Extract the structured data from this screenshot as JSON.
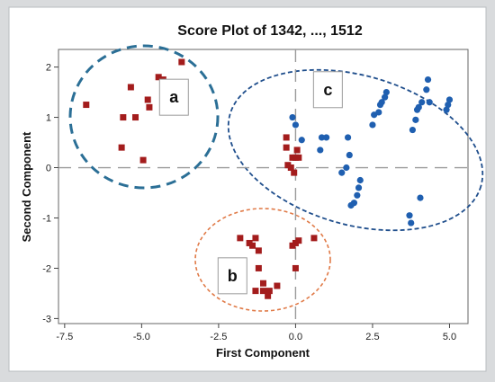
{
  "chart_data": {
    "type": "scatter",
    "title": "Score Plot of 1342, ..., 1512",
    "xlabel": "First Component",
    "ylabel": "Second Component",
    "xlim": [
      -7.7,
      5.6
    ],
    "ylim": [
      -3.1,
      2.35
    ],
    "xticks": [
      -7.5,
      -5.0,
      -2.5,
      0.0,
      2.5,
      5.0
    ],
    "xtick_labels": [
      "-7.5",
      "-5.0",
      "-2.5",
      "0.0",
      "2.5",
      "5.0"
    ],
    "yticks": [
      -3,
      -2,
      -1,
      0,
      1,
      2
    ],
    "ytick_labels": [
      "-3",
      "-2",
      "-1",
      "0",
      "1",
      "2"
    ],
    "reference_lines": {
      "x": 0,
      "y": 0
    },
    "grid": false,
    "series": [
      {
        "marker": "square",
        "color": "#a31c1c",
        "points": [
          [
            -6.8,
            1.25
          ],
          [
            -5.6,
            1.0
          ],
          [
            -5.35,
            1.6
          ],
          [
            -5.65,
            0.4
          ],
          [
            -5.2,
            1.0
          ],
          [
            -4.95,
            0.15
          ],
          [
            -4.8,
            1.35
          ],
          [
            -4.75,
            1.2
          ],
          [
            -4.45,
            1.8
          ],
          [
            -4.3,
            1.75
          ],
          [
            -4.2,
            1.65
          ],
          [
            -3.7,
            2.1
          ],
          [
            -0.3,
            0.6
          ],
          [
            -0.3,
            0.4
          ],
          [
            -0.25,
            0.05
          ],
          [
            -0.1,
            0.2
          ],
          [
            0.0,
            0.2
          ],
          [
            0.1,
            0.2
          ],
          [
            -0.15,
            0.0
          ],
          [
            -0.05,
            -0.1
          ],
          [
            0.05,
            0.35
          ],
          [
            -1.8,
            -1.4
          ],
          [
            -1.5,
            -1.5
          ],
          [
            -1.3,
            -1.4
          ],
          [
            -1.4,
            -1.55
          ],
          [
            -1.2,
            -1.65
          ],
          [
            -0.1,
            -1.55
          ],
          [
            0.0,
            -1.5
          ],
          [
            0.1,
            -1.45
          ],
          [
            0.6,
            -1.4
          ],
          [
            -1.2,
            -2.0
          ],
          [
            0.0,
            -2.0
          ],
          [
            -1.05,
            -2.3
          ],
          [
            -0.85,
            -2.45
          ],
          [
            -1.05,
            -2.45
          ],
          [
            -1.3,
            -2.45
          ],
          [
            -0.9,
            -2.55
          ],
          [
            -0.6,
            -2.35
          ]
        ]
      },
      {
        "marker": "circle",
        "color": "#1f5fb0",
        "points": [
          [
            0.0,
            0.85
          ],
          [
            -0.1,
            1.0
          ],
          [
            0.2,
            0.55
          ],
          [
            0.8,
            0.35
          ],
          [
            0.85,
            0.6
          ],
          [
            1.0,
            0.6
          ],
          [
            1.5,
            -0.1
          ],
          [
            1.65,
            0.0
          ],
          [
            1.7,
            0.6
          ],
          [
            1.75,
            0.25
          ],
          [
            1.8,
            -0.75
          ],
          [
            1.9,
            -0.7
          ],
          [
            2.0,
            -0.55
          ],
          [
            2.05,
            -0.4
          ],
          [
            2.1,
            -0.25
          ],
          [
            2.5,
            0.85
          ],
          [
            2.55,
            1.05
          ],
          [
            2.7,
            1.1
          ],
          [
            2.75,
            1.25
          ],
          [
            2.8,
            1.3
          ],
          [
            2.9,
            1.4
          ],
          [
            2.95,
            1.5
          ],
          [
            3.7,
            -0.95
          ],
          [
            3.75,
            -1.1
          ],
          [
            3.8,
            0.75
          ],
          [
            3.9,
            0.95
          ],
          [
            3.95,
            1.15
          ],
          [
            4.0,
            1.2
          ],
          [
            4.05,
            -0.6
          ],
          [
            4.1,
            1.3
          ],
          [
            4.25,
            1.55
          ],
          [
            4.3,
            1.75
          ],
          [
            4.35,
            1.3
          ],
          [
            4.9,
            1.15
          ],
          [
            5.0,
            1.35
          ],
          [
            4.95,
            1.25
          ]
        ]
      }
    ],
    "group_labels": [
      {
        "text": "a",
        "x": -3.95,
        "y": 1.4
      },
      {
        "text": "b",
        "x": -2.05,
        "y": -2.15
      },
      {
        "text": "c",
        "x": 1.05,
        "y": 1.55
      }
    ]
  },
  "colors": {
    "ellipse_a": "#2b6f96",
    "ellipse_b": "#e07a47",
    "ellipse_c": "#1f4e8c"
  }
}
